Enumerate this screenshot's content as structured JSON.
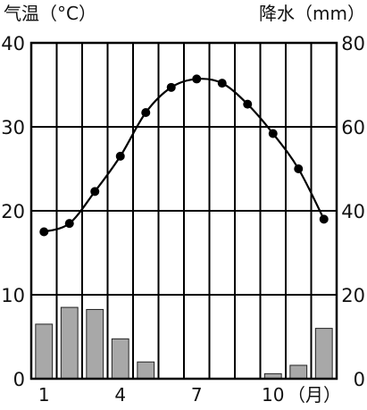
{
  "chart_data": {
    "type": "bar+line",
    "left_axis_label": "气温（°C）",
    "right_axis_label": "降水（mm）",
    "x_tick_labels": [
      "1",
      "4",
      "7",
      "10"
    ],
    "x_tick_months": [
      1,
      4,
      7,
      10
    ],
    "x_unit_label": "（月）",
    "categories": [
      1,
      2,
      3,
      4,
      5,
      6,
      7,
      8,
      9,
      10,
      11,
      12
    ],
    "temperature": {
      "values": [
        17.5,
        18.5,
        22.3,
        26.5,
        31.7,
        34.7,
        35.7,
        35.2,
        32.7,
        29.2,
        25.0,
        19.0
      ],
      "ylim": [
        0,
        40
      ],
      "ticks": [
        0,
        10,
        20,
        30,
        40
      ],
      "tick_labels": [
        "0",
        "10",
        "20",
        "30",
        "40"
      ],
      "color": "#000000"
    },
    "precipitation": {
      "values": [
        13,
        17,
        16.5,
        9.5,
        4,
        0,
        0,
        0,
        0,
        1.2,
        3.2,
        12
      ],
      "ylim": [
        0,
        80
      ],
      "ticks": [
        0,
        20,
        40,
        60,
        80
      ],
      "tick_labels": [
        "0",
        "20",
        "40",
        "60",
        "80"
      ],
      "color": "#a8a8a8"
    },
    "grid": true
  }
}
